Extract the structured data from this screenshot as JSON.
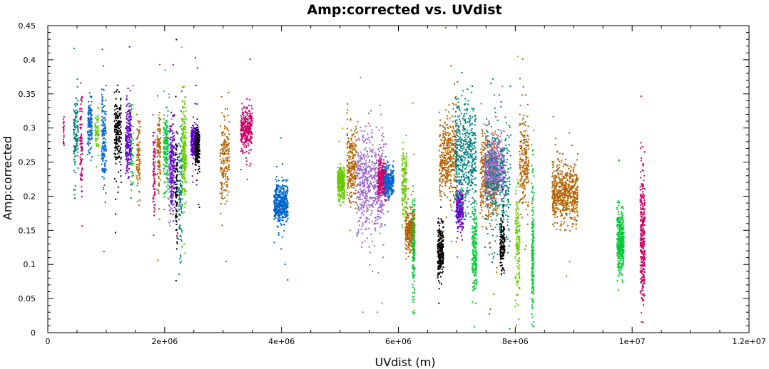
{
  "chart_data": {
    "type": "scatter",
    "title": "Amp:corrected vs. UVdist",
    "xlabel": "UVdist (m)",
    "ylabel": "Amp:corrected",
    "xlim": [
      0,
      12000000
    ],
    "ylim": [
      0,
      0.45
    ],
    "x_ticks": [
      0,
      2000000,
      4000000,
      6000000,
      8000000,
      10000000,
      12000000
    ],
    "x_tick_labels": [
      "0",
      "2e+06",
      "4e+06",
      "6e+06",
      "8e+06",
      "1e+07",
      "1.2e+07"
    ],
    "y_ticks": [
      0,
      0.05,
      0.1,
      0.15,
      0.2,
      0.25,
      0.3,
      0.35,
      0.4,
      0.45
    ],
    "y_tick_labels": [
      "0",
      "0.05",
      "0.1",
      "0.15",
      "0.2",
      "0.25",
      "0.3",
      "0.35",
      "0.4",
      "0.45"
    ],
    "grid": false,
    "legend": false,
    "point_colors": [
      "#cc0066",
      "#008080",
      "#0066cc",
      "#00cc33",
      "#66cc00",
      "#000000",
      "#6600cc",
      "#b36200",
      "#9966cc"
    ],
    "clusters": [
      {
        "x": 270000,
        "x_spread": 10000,
        "y_center": 0.297,
        "y_spread": 0.011,
        "color": "#cc0066",
        "count": 20
      },
      {
        "x": 480000,
        "x_spread": 40000,
        "y_center": 0.29,
        "y_spread": 0.025,
        "color": "#008080",
        "count": 130
      },
      {
        "x": 570000,
        "x_spread": 20000,
        "y_center": 0.28,
        "y_spread": 0.04,
        "color": "#cc0066",
        "count": 90
      },
      {
        "x": 720000,
        "x_spread": 40000,
        "y_center": 0.305,
        "y_spread": 0.02,
        "color": "#0066cc",
        "count": 130
      },
      {
        "x": 840000,
        "x_spread": 30000,
        "y_center": 0.295,
        "y_spread": 0.015,
        "color": "#66cc00",
        "count": 60
      },
      {
        "x": 960000,
        "x_spread": 40000,
        "y_center": 0.285,
        "y_spread": 0.035,
        "color": "#0066cc",
        "count": 150
      },
      {
        "x": 1200000,
        "x_spread": 60000,
        "y_center": 0.295,
        "y_spread": 0.025,
        "color": "#000000",
        "count": 190
      },
      {
        "x": 1380000,
        "x_spread": 50000,
        "y_center": 0.28,
        "y_spread": 0.025,
        "color": "#6600cc",
        "count": 220
      },
      {
        "x": 1440000,
        "x_spread": 30000,
        "y_center": 0.26,
        "y_spread": 0.035,
        "color": "#00cc33",
        "count": 50
      },
      {
        "x": 1550000,
        "x_spread": 30000,
        "y_center": 0.255,
        "y_spread": 0.03,
        "color": "#b36200",
        "count": 90
      },
      {
        "x": 1820000,
        "x_spread": 20000,
        "y_center": 0.24,
        "y_spread": 0.035,
        "color": "#cc0066",
        "count": 80
      },
      {
        "x": 1900000,
        "x_spread": 30000,
        "y_center": 0.27,
        "y_spread": 0.03,
        "color": "#b36200",
        "count": 110
      },
      {
        "x": 2020000,
        "x_spread": 40000,
        "y_center": 0.265,
        "y_spread": 0.03,
        "color": "#00cc33",
        "count": 170
      },
      {
        "x": 2100000,
        "x_spread": 30000,
        "y_center": 0.235,
        "y_spread": 0.04,
        "color": "#9966cc",
        "count": 120
      },
      {
        "x": 2130000,
        "x_spread": 40000,
        "y_center": 0.245,
        "y_spread": 0.03,
        "color": "#6600cc",
        "count": 150
      },
      {
        "x": 2200000,
        "x_spread": 20000,
        "y_center": 0.215,
        "y_spread": 0.045,
        "color": "#000000",
        "count": 100
      },
      {
        "x": 2270000,
        "x_spread": 30000,
        "y_center": 0.21,
        "y_spread": 0.045,
        "color": "#008080",
        "count": 110
      },
      {
        "x": 2330000,
        "x_spread": 40000,
        "y_center": 0.265,
        "y_spread": 0.035,
        "color": "#66cc00",
        "count": 230
      },
      {
        "x": 2510000,
        "x_spread": 60000,
        "y_center": 0.28,
        "y_spread": 0.013,
        "color": "#6600cc",
        "count": 270
      },
      {
        "x": 2560000,
        "x_spread": 40000,
        "y_center": 0.27,
        "y_spread": 0.015,
        "color": "#000000",
        "count": 180
      },
      {
        "x": 3030000,
        "x_spread": 80000,
        "y_center": 0.255,
        "y_spread": 0.03,
        "color": "#b36200",
        "count": 180
      },
      {
        "x": 3400000,
        "x_spread": 100000,
        "y_center": 0.298,
        "y_spread": 0.015,
        "color": "#cc0066",
        "count": 300
      },
      {
        "x": 3990000,
        "x_spread": 120000,
        "y_center": 0.188,
        "y_spread": 0.015,
        "color": "#0066cc",
        "count": 450
      },
      {
        "x": 5020000,
        "x_spread": 60000,
        "y_center": 0.22,
        "y_spread": 0.012,
        "color": "#66cc00",
        "count": 280
      },
      {
        "x": 5200000,
        "x_spread": 80000,
        "y_center": 0.245,
        "y_spread": 0.025,
        "color": "#b36200",
        "count": 250
      },
      {
        "x": 5520000,
        "x_spread": 230000,
        "y_center": 0.22,
        "y_spread": 0.035,
        "color": "#9966cc",
        "count": 600
      },
      {
        "x": 5720000,
        "x_spread": 70000,
        "y_center": 0.225,
        "y_spread": 0.013,
        "color": "#cc0066",
        "count": 320
      },
      {
        "x": 5840000,
        "x_spread": 80000,
        "y_center": 0.22,
        "y_spread": 0.01,
        "color": "#0066cc",
        "count": 300
      },
      {
        "x": 6100000,
        "x_spread": 40000,
        "y_center": 0.22,
        "y_spread": 0.025,
        "color": "#66cc00",
        "count": 140
      },
      {
        "x": 6200000,
        "x_spread": 80000,
        "y_center": 0.15,
        "y_spread": 0.015,
        "color": "#b36200",
        "count": 300
      },
      {
        "x": 6260000,
        "x_spread": 20000,
        "y_center": 0.12,
        "y_spread": 0.035,
        "color": "#00cc33",
        "count": 140
      },
      {
        "x": 6720000,
        "x_spread": 50000,
        "y_center": 0.12,
        "y_spread": 0.02,
        "color": "#000000",
        "count": 250
      },
      {
        "x": 6850000,
        "x_spread": 150000,
        "y_center": 0.255,
        "y_spread": 0.03,
        "color": "#b36200",
        "count": 400
      },
      {
        "x": 7050000,
        "x_spread": 60000,
        "y_center": 0.18,
        "y_spread": 0.015,
        "color": "#6600cc",
        "count": 220
      },
      {
        "x": 7150000,
        "x_spread": 180000,
        "y_center": 0.26,
        "y_spread": 0.04,
        "color": "#008080",
        "count": 500
      },
      {
        "x": 7300000,
        "x_spread": 40000,
        "y_center": 0.12,
        "y_spread": 0.03,
        "color": "#00cc33",
        "count": 200
      },
      {
        "x": 7550000,
        "x_spread": 150000,
        "y_center": 0.23,
        "y_spread": 0.03,
        "color": "#b36200",
        "count": 420
      },
      {
        "x": 7650000,
        "x_spread": 170000,
        "y_center": 0.24,
        "y_spread": 0.02,
        "color": "#9966cc",
        "count": 500
      },
      {
        "x": 7700000,
        "x_spread": 220000,
        "y_center": 0.22,
        "y_spread": 0.045,
        "color": "#008080",
        "count": 350
      },
      {
        "x": 7780000,
        "x_spread": 40000,
        "y_center": 0.13,
        "y_spread": 0.02,
        "color": "#000000",
        "count": 140
      },
      {
        "x": 8040000,
        "x_spread": 40000,
        "y_center": 0.13,
        "y_spread": 0.04,
        "color": "#66cc00",
        "count": 150
      },
      {
        "x": 8150000,
        "x_spread": 80000,
        "y_center": 0.25,
        "y_spread": 0.035,
        "color": "#b36200",
        "count": 220
      },
      {
        "x": 8300000,
        "x_spread": 20000,
        "y_center": 0.12,
        "y_spread": 0.05,
        "color": "#00cc33",
        "count": 180
      },
      {
        "x": 8850000,
        "x_spread": 220000,
        "y_center": 0.205,
        "y_spread": 0.022,
        "color": "#b36200",
        "count": 600
      },
      {
        "x": 9800000,
        "x_spread": 60000,
        "y_center": 0.135,
        "y_spread": 0.022,
        "color": "#00cc33",
        "count": 350
      },
      {
        "x": 10180000,
        "x_spread": 40000,
        "y_center": 0.14,
        "y_spread": 0.045,
        "color": "#cc0066",
        "count": 300
      }
    ]
  }
}
